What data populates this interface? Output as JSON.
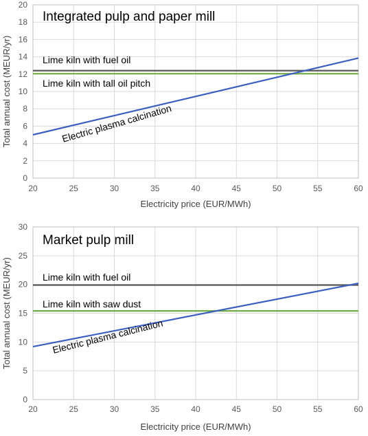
{
  "chart_data": [
    {
      "type": "line",
      "title": "Integrated pulp and paper mill",
      "xlabel": "Electricity price (EUR/MWh)",
      "ylabel": "Total annual cost (MEUR/yr)",
      "xlim": [
        20,
        60
      ],
      "ylim": [
        0,
        20
      ],
      "xticks": [
        20,
        25,
        30,
        35,
        40,
        45,
        50,
        55,
        60
      ],
      "yticks": [
        0,
        2,
        4,
        6,
        8,
        10,
        12,
        14,
        16,
        18,
        20
      ],
      "grid": true,
      "series": [
        {
          "name": "Lime kiln with fuel oil",
          "color": "#595959",
          "x": [
            20,
            60
          ],
          "y": [
            12.4,
            12.4
          ]
        },
        {
          "name": "Lime kiln with tall oil pitch",
          "color": "#70ad47",
          "x": [
            20,
            60
          ],
          "y": [
            12.05,
            12.05
          ]
        },
        {
          "name": "Electric plasma calcination",
          "color": "#3a5fbf",
          "x": [
            20,
            60
          ],
          "y": [
            5.0,
            13.85
          ]
        }
      ]
    },
    {
      "type": "line",
      "title": "Market pulp mill",
      "xlabel": "Electricity price (EUR/MWh)",
      "ylabel": "Total annual cost (MEUR/yr)",
      "xlim": [
        20,
        60
      ],
      "ylim": [
        0,
        30
      ],
      "xticks": [
        20,
        25,
        30,
        35,
        40,
        45,
        50,
        55,
        60
      ],
      "yticks": [
        0,
        5,
        10,
        15,
        20,
        25,
        30
      ],
      "grid": true,
      "series": [
        {
          "name": "Lime kiln with fuel oil",
          "color": "#595959",
          "x": [
            20,
            60
          ],
          "y": [
            19.9,
            19.9
          ]
        },
        {
          "name": "Lime kiln with saw dust",
          "color": "#70ad47",
          "x": [
            20,
            60
          ],
          "y": [
            15.4,
            15.4
          ]
        },
        {
          "name": "Electric plasma calcination",
          "color": "#3a5fbf",
          "x": [
            20,
            60
          ],
          "y": [
            9.2,
            20.2
          ]
        }
      ]
    }
  ]
}
